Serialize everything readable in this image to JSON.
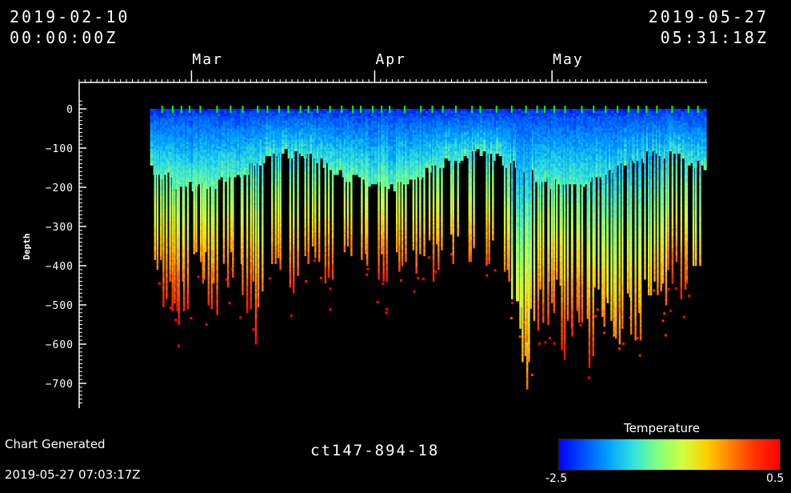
{
  "header": {
    "start_date": "2019-02-10",
    "start_time": "00:00:00Z",
    "end_date": "2019-05-27",
    "end_time": "05:31:18Z"
  },
  "footer": {
    "generated_label": "Chart Generated",
    "generated_time": "2019-05-27 07:03:17Z",
    "deployment_id": "ct147-894-18"
  },
  "colorbar": {
    "title": "Temperature",
    "min_label": "-2.5",
    "max_label": "0.5",
    "stops": [
      "#0000ff",
      "#0050ff",
      "#00a0ff",
      "#30e0e0",
      "#80ff80",
      "#d0ff40",
      "#ffd000",
      "#ff8000",
      "#ff3000",
      "#ff0000"
    ]
  },
  "chart_data": {
    "type": "scatter",
    "title": "",
    "xlabel": "",
    "ylabel": "Depth",
    "x_range": [
      "2019-02-10T00:00:00Z",
      "2019-05-27T05:31:18Z"
    ],
    "ylim": [
      -750,
      20
    ],
    "x_ticks": [
      {
        "label": "Mar",
        "date": "2019-03-01"
      },
      {
        "label": "Apr",
        "date": "2019-04-01"
      },
      {
        "label": "May",
        "date": "2019-05-01"
      }
    ],
    "y_ticks": [
      0,
      -100,
      -200,
      -300,
      -400,
      -500,
      -600,
      -700
    ],
    "color_variable": "Temperature",
    "color_range": [
      -2.5,
      0.5
    ],
    "surface_marker_color": "#00ff00",
    "data_start": "2019-02-22",
    "data_end": "2019-05-26",
    "dive_profiles": [
      {
        "date": "2019-02-23",
        "max_depth": -470,
        "bottom_temp": 0.2
      },
      {
        "date": "2019-02-25",
        "max_depth": -520,
        "bottom_temp": 0.4
      },
      {
        "date": "2019-02-27",
        "max_depth": -560,
        "bottom_temp": 0.5
      },
      {
        "date": "2019-03-02",
        "max_depth": -480,
        "bottom_temp": 0.3
      },
      {
        "date": "2019-03-04",
        "max_depth": -540,
        "bottom_temp": 0.4
      },
      {
        "date": "2019-03-07",
        "max_depth": -470,
        "bottom_temp": 0.3
      },
      {
        "date": "2019-03-10",
        "max_depth": -520,
        "bottom_temp": 0.4
      },
      {
        "date": "2019-03-12",
        "max_depth": -610,
        "bottom_temp": 0.5
      },
      {
        "date": "2019-03-15",
        "max_depth": -460,
        "bottom_temp": 0.3
      },
      {
        "date": "2019-03-18",
        "max_depth": -500,
        "bottom_temp": 0.4
      },
      {
        "date": "2019-03-21",
        "max_depth": -430,
        "bottom_temp": 0.2
      },
      {
        "date": "2019-03-24",
        "max_depth": -450,
        "bottom_temp": 0.3
      },
      {
        "date": "2019-03-27",
        "max_depth": -420,
        "bottom_temp": 0.2
      },
      {
        "date": "2019-03-30",
        "max_depth": -430,
        "bottom_temp": 0.2
      },
      {
        "date": "2019-04-02",
        "max_depth": -440,
        "bottom_temp": 0.3
      },
      {
        "date": "2019-04-05",
        "max_depth": -430,
        "bottom_temp": 0.2
      },
      {
        "date": "2019-04-08",
        "max_depth": -460,
        "bottom_temp": 0.3
      },
      {
        "date": "2019-04-11",
        "max_depth": -440,
        "bottom_temp": 0.3
      },
      {
        "date": "2019-04-14",
        "max_depth": -420,
        "bottom_temp": 0.2
      },
      {
        "date": "2019-04-17",
        "max_depth": -400,
        "bottom_temp": 0.1
      },
      {
        "date": "2019-04-20",
        "max_depth": -420,
        "bottom_temp": 0.2
      },
      {
        "date": "2019-04-23",
        "max_depth": -480,
        "bottom_temp": 0.2
      },
      {
        "date": "2019-04-25",
        "max_depth": -640,
        "bottom_temp": -0.2
      },
      {
        "date": "2019-04-26",
        "max_depth": -720,
        "bottom_temp": -0.1
      },
      {
        "date": "2019-04-27",
        "max_depth": -660,
        "bottom_temp": 0.2
      },
      {
        "date": "2019-04-29",
        "max_depth": -600,
        "bottom_temp": 0.4
      },
      {
        "date": "2019-05-01",
        "max_depth": -560,
        "bottom_temp": 0.3
      },
      {
        "date": "2019-05-03",
        "max_depth": -640,
        "bottom_temp": 0.4
      },
      {
        "date": "2019-05-05",
        "max_depth": -580,
        "bottom_temp": 0.3
      },
      {
        "date": "2019-05-07",
        "max_depth": -660,
        "bottom_temp": 0.3
      },
      {
        "date": "2019-05-09",
        "max_depth": -600,
        "bottom_temp": 0.1
      },
      {
        "date": "2019-05-11",
        "max_depth": -640,
        "bottom_temp": 0.0
      },
      {
        "date": "2019-05-13",
        "max_depth": -590,
        "bottom_temp": 0.1
      },
      {
        "date": "2019-05-15",
        "max_depth": -620,
        "bottom_temp": 0.1
      },
      {
        "date": "2019-05-17",
        "max_depth": -560,
        "bottom_temp": 0.0
      },
      {
        "date": "2019-05-19",
        "max_depth": -500,
        "bottom_temp": 0.0
      },
      {
        "date": "2019-05-21",
        "max_depth": -460,
        "bottom_temp": 0.4
      },
      {
        "date": "2019-05-23",
        "max_depth": -520,
        "bottom_temp": 0.5
      },
      {
        "date": "2019-05-25",
        "max_depth": -420,
        "bottom_temp": -0.3
      }
    ]
  }
}
